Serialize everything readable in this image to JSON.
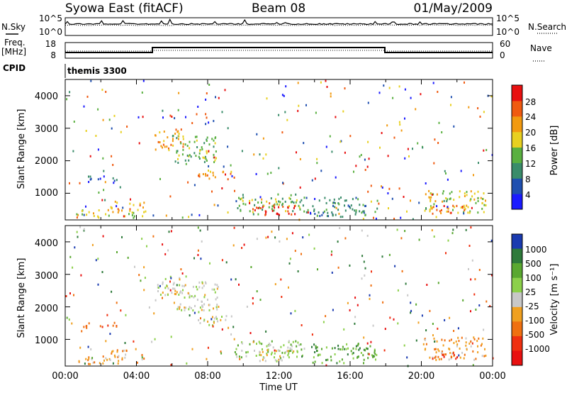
{
  "header": {
    "station": "Syowa East (fitACF)",
    "beam": "Beam 08",
    "date": "01/May/2009"
  },
  "status_panels": {
    "nsky_label": "N.Sky",
    "nsearch_label": "N.Search",
    "noise_left_ticks": [
      "10^5",
      "10^0"
    ],
    "noise_right_ticks": [
      "10^5",
      "10^0"
    ],
    "freq_label_lines": [
      "Freq.",
      "[MHz]"
    ],
    "freq_ticks": [
      "18",
      "8"
    ],
    "nave_label": "Nave",
    "nave_ticks": [
      "60",
      "0"
    ],
    "cpid_label": "CPID",
    "cpid_value": "themis 3300"
  },
  "chart_data": [
    {
      "type": "heatmap",
      "name": "power-panel",
      "ylabel": "Slant Range [km]",
      "y_ticks": [
        "1000",
        "2000",
        "3000",
        "4000"
      ],
      "ylim": [
        180,
        4500
      ],
      "colorbar_label": "Power [dB]",
      "colorbar_ticks": [
        "4",
        "8",
        "12",
        "16",
        "20",
        "24",
        "28"
      ],
      "colors": [
        "#1a1aff",
        "#1f4fb0",
        "#3a8c6a",
        "#5ab040",
        "#e8d020",
        "#f29a10",
        "#f05a10",
        "#e81010"
      ],
      "regions": [
        {
          "x0": 5.0,
          "x1": 6.6,
          "y0": 2400,
          "y1": 3000,
          "level": 5
        },
        {
          "x0": 6.0,
          "x1": 8.6,
          "y0": 1900,
          "y1": 2800,
          "level": 3
        },
        {
          "x0": 7.4,
          "x1": 9.6,
          "y0": 1450,
          "y1": 1750,
          "level": 5
        },
        {
          "x0": 9.5,
          "x1": 13.5,
          "y0": 450,
          "y1": 1000,
          "level": 3
        },
        {
          "x0": 10.5,
          "x1": 13.0,
          "y0": 350,
          "y1": 750,
          "level": 7
        },
        {
          "x0": 0.6,
          "x1": 4.5,
          "y0": 260,
          "y1": 520,
          "level": 4
        },
        {
          "x0": 2.5,
          "x1": 4.5,
          "y0": 520,
          "y1": 750,
          "level": 5
        },
        {
          "x0": 1.0,
          "x1": 3.0,
          "y0": 1350,
          "y1": 1550,
          "level": 1
        },
        {
          "x0": 13.5,
          "x1": 17.5,
          "y0": 300,
          "y1": 900,
          "level": 2
        },
        {
          "x0": 20.0,
          "x1": 23.6,
          "y0": 400,
          "y1": 1100,
          "level": 4
        },
        {
          "x0": 20.5,
          "x1": 22.5,
          "y0": 400,
          "y1": 650,
          "level": 6
        }
      ]
    },
    {
      "type": "heatmap",
      "name": "velocity-panel",
      "xlabel": "Time UT",
      "x_ticks": [
        "00:00",
        "04:00",
        "08:00",
        "12:00",
        "16:00",
        "20:00",
        "00:00"
      ],
      "xlim": [
        0,
        24
      ],
      "ylabel": "Slant Range [km]",
      "y_ticks": [
        "1000",
        "2000",
        "3000",
        "4000"
      ],
      "ylim": [
        180,
        4500
      ],
      "colorbar_label": "Velocity [m s⁻¹]",
      "colorbar_ticks": [
        "1000",
        "500",
        "100",
        "25",
        "-25",
        "-100",
        "-500",
        "-1000"
      ],
      "colors": [
        "#1a3ab0",
        "#2e7a3a",
        "#5aa830",
        "#8cd04a",
        "#c8c8c8",
        "#f0a020",
        "#f07010",
        "#f03010",
        "#e81010"
      ],
      "regions": [
        {
          "x0": 5.0,
          "x1": 6.6,
          "y0": 2400,
          "y1": 3000,
          "level": 4
        },
        {
          "x0": 6.0,
          "x1": 8.6,
          "y0": 1900,
          "y1": 2800,
          "level": 4
        },
        {
          "x0": 7.4,
          "x1": 9.6,
          "y0": 1450,
          "y1": 1750,
          "level": 4
        },
        {
          "x0": 9.5,
          "x1": 13.5,
          "y0": 450,
          "y1": 1000,
          "level": 3
        },
        {
          "x0": 10.5,
          "x1": 13.0,
          "y0": 350,
          "y1": 750,
          "level": 4
        },
        {
          "x0": 0.6,
          "x1": 4.5,
          "y0": 260,
          "y1": 520,
          "level": 5
        },
        {
          "x0": 2.5,
          "x1": 4.5,
          "y0": 520,
          "y1": 750,
          "level": 5
        },
        {
          "x0": 1.0,
          "x1": 3.0,
          "y0": 1350,
          "y1": 1550,
          "level": 6
        },
        {
          "x0": 13.5,
          "x1": 17.5,
          "y0": 300,
          "y1": 900,
          "level": 2
        },
        {
          "x0": 20.0,
          "x1": 23.6,
          "y0": 400,
          "y1": 1100,
          "level": 5
        },
        {
          "x0": 20.5,
          "x1": 22.5,
          "y0": 400,
          "y1": 650,
          "level": 7
        }
      ]
    }
  ]
}
